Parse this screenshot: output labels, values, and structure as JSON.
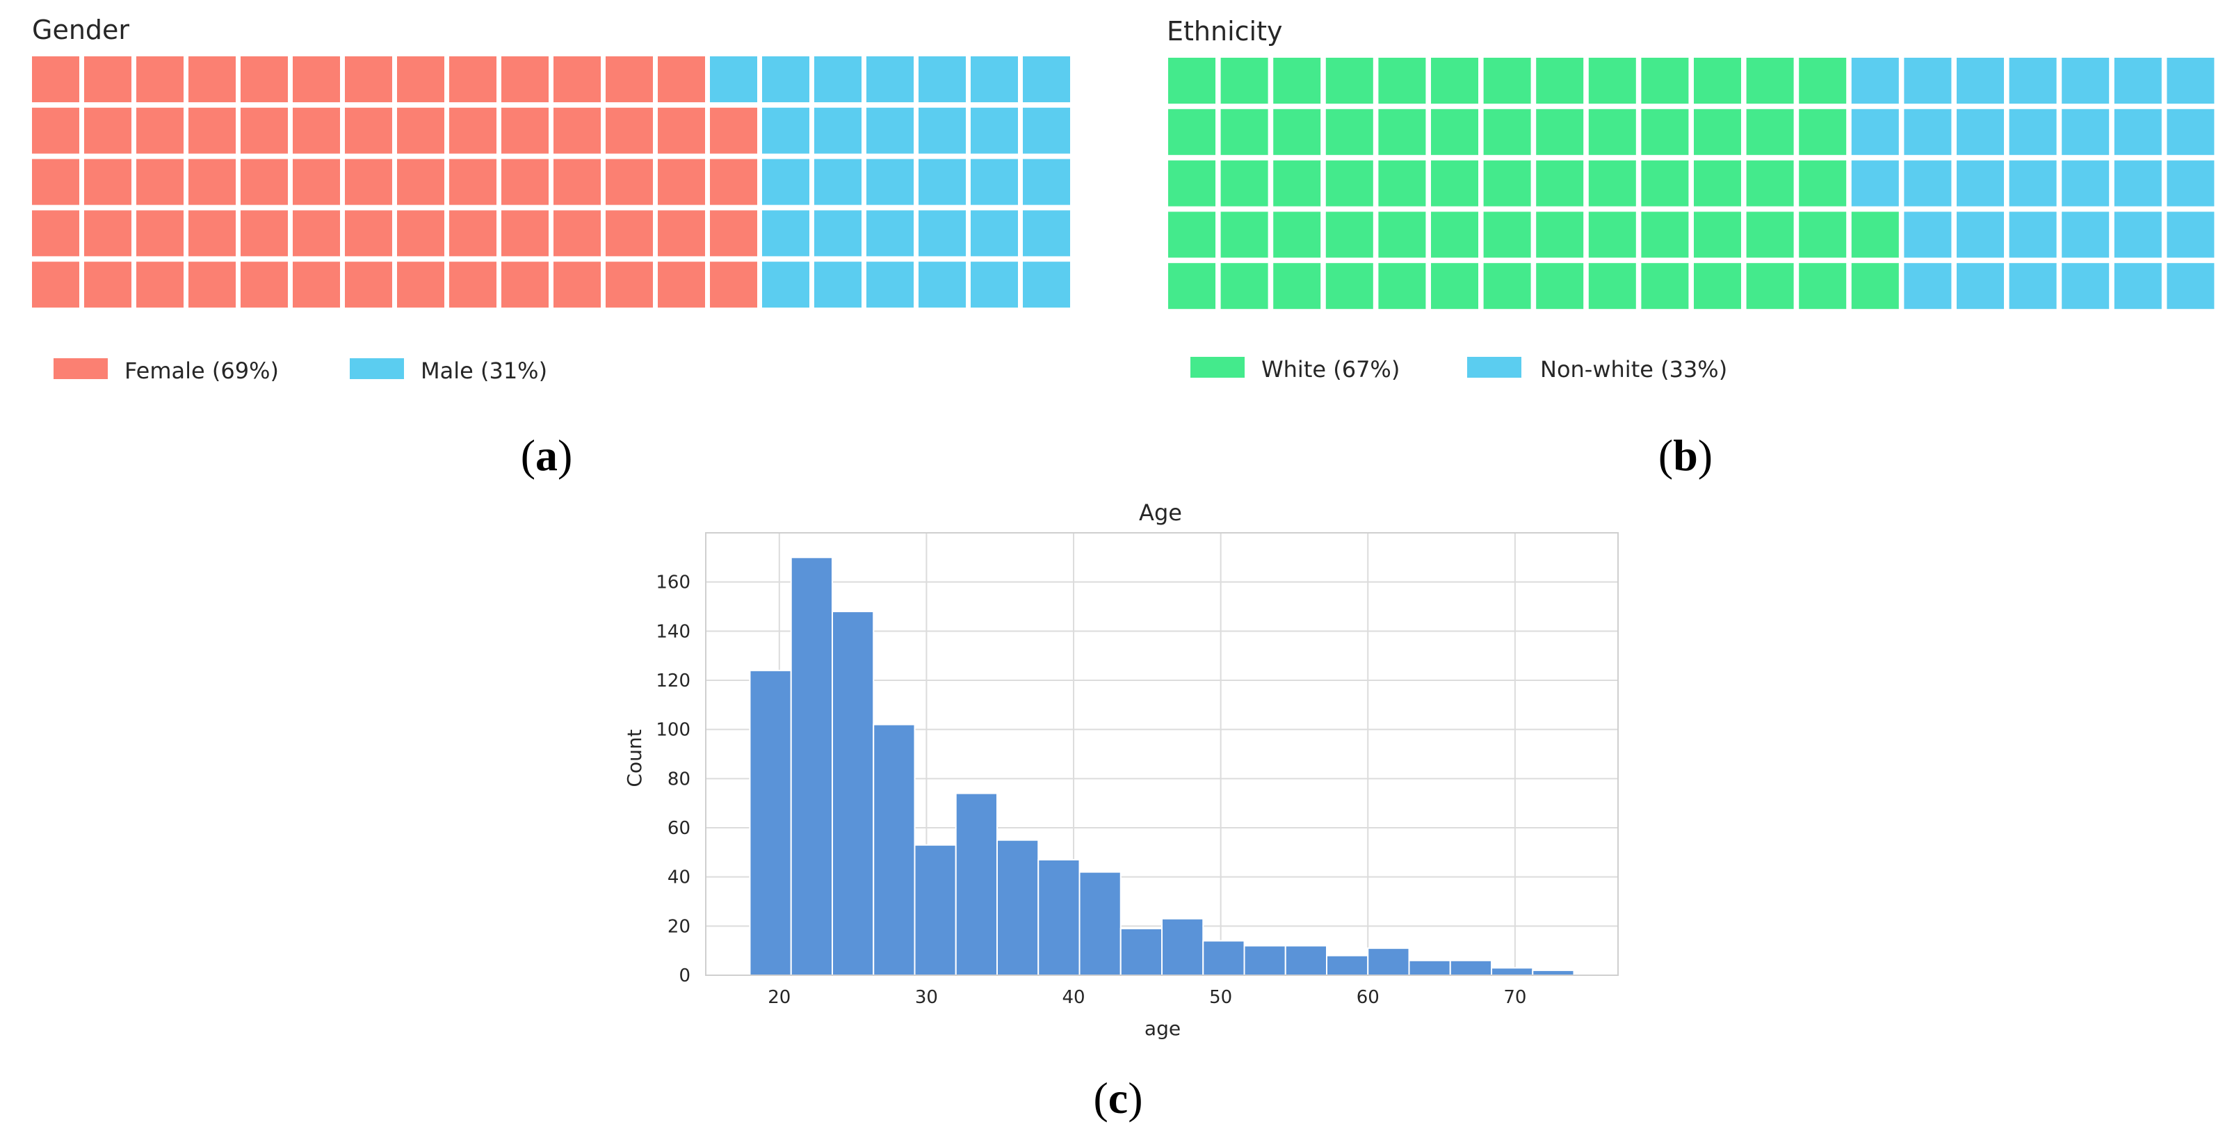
{
  "chart_data": [
    {
      "type": "waffle",
      "title": "Gender",
      "rows": 5,
      "columns": 20,
      "series": [
        {
          "name": "Female",
          "label": "Female (69%)",
          "value": 69,
          "color": "#fb8072"
        },
        {
          "name": "Male",
          "label": "Male (31%)",
          "value": 31,
          "color": "#5bcdf0"
        }
      ],
      "caption": "(a)",
      "caption_letter": "a"
    },
    {
      "type": "waffle",
      "title": "Ethnicity",
      "rows": 5,
      "columns": 20,
      "series": [
        {
          "name": "White",
          "label": "White (67%)",
          "value": 67,
          "color": "#44ea8c"
        },
        {
          "name": "Non-white",
          "label": "Non-white (33%)",
          "value": 33,
          "color": "#5bcdf0"
        }
      ],
      "caption": "(b)",
      "caption_letter": "b"
    },
    {
      "type": "bar",
      "subtype": "histogram",
      "title": "Age",
      "xlabel": "age",
      "ylabel": "Count",
      "bin_edges": [
        18,
        20.8,
        23.6,
        26.4,
        29.2,
        32,
        34.8,
        37.6,
        40.4,
        43.2,
        46,
        48.8,
        51.6,
        54.4,
        57.2,
        60,
        62.8,
        65.6,
        68.4,
        71.2,
        74
      ],
      "values": [
        124,
        170,
        148,
        102,
        53,
        74,
        55,
        47,
        42,
        19,
        23,
        14,
        12,
        12,
        8,
        11,
        6,
        6,
        3,
        2
      ],
      "xlim": [
        15,
        77
      ],
      "ylim": [
        0,
        180
      ],
      "xticks": [
        20,
        30,
        40,
        50,
        60,
        70
      ],
      "yticks": [
        0,
        20,
        40,
        60,
        80,
        100,
        120,
        140,
        160
      ],
      "grid": true,
      "color": "#5a93d8",
      "caption": "(c)",
      "caption_letter": "c"
    }
  ]
}
